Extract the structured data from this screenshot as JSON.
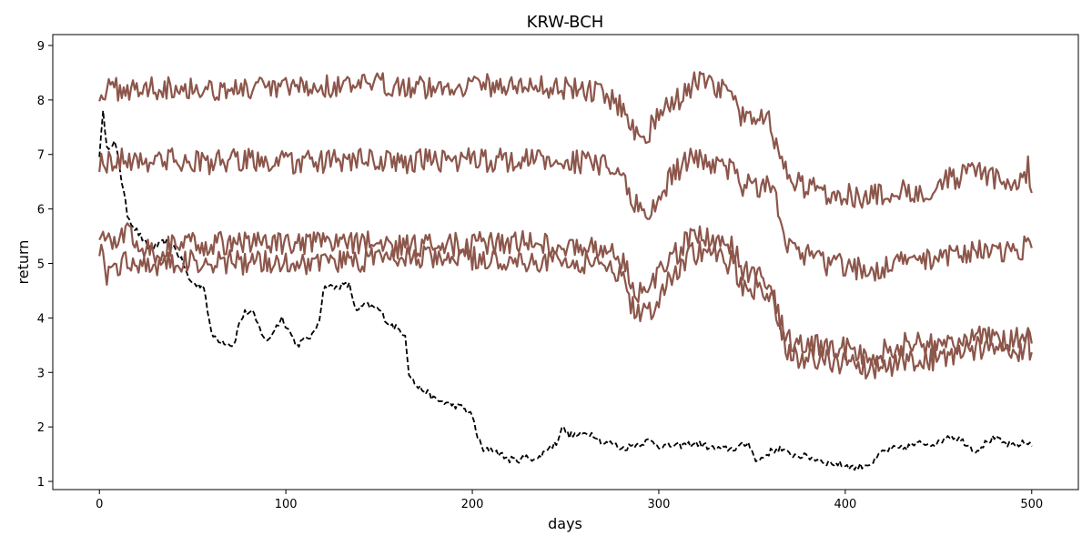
{
  "chart_data": {
    "type": "line",
    "title": "KRW-BCH",
    "xlabel": "days",
    "ylabel": "return",
    "xlim": [
      -25,
      525
    ],
    "ylim": [
      0.85,
      9.2
    ],
    "xticks": [
      0,
      100,
      200,
      300,
      400,
      500
    ],
    "yticks": [
      1,
      2,
      3,
      4,
      5,
      6,
      7,
      8,
      9
    ],
    "grid": false,
    "legend": "none",
    "colors": {
      "brown": "#8c564b",
      "black": "#000000"
    },
    "series": [
      {
        "style": "dashed",
        "color": "#000000",
        "x": [
          0,
          2,
          4,
          6,
          8,
          10,
          12,
          15,
          18,
          22,
          26,
          30,
          35,
          40,
          45,
          48,
          52,
          56,
          60,
          64,
          68,
          72,
          75,
          78,
          82,
          86,
          90,
          94,
          98,
          102,
          106,
          110,
          115,
          118,
          120,
          122,
          126,
          130,
          134,
          138,
          142,
          146,
          150,
          155,
          160,
          164,
          166,
          170,
          175,
          180,
          185,
          190,
          195,
          200,
          203,
          206,
          210,
          215,
          220,
          225,
          230,
          235,
          240,
          245,
          248,
          252,
          258,
          262,
          266,
          270,
          275,
          280,
          285,
          290,
          295,
          300,
          310,
          320,
          330,
          340,
          348,
          350,
          352,
          356,
          360,
          365,
          370,
          380,
          390,
          400,
          405,
          410,
          415,
          420,
          425,
          430,
          440,
          450,
          455,
          460,
          465,
          470,
          475,
          480,
          485,
          490,
          495,
          500
        ],
        "values": [
          7.0,
          7.75,
          7.2,
          7.1,
          7.2,
          7.0,
          6.5,
          5.9,
          5.7,
          5.5,
          5.3,
          5.3,
          5.4,
          5.3,
          5.0,
          4.7,
          4.6,
          4.6,
          3.7,
          3.6,
          3.55,
          3.5,
          3.9,
          4.1,
          4.1,
          3.8,
          3.55,
          3.8,
          4.0,
          3.75,
          3.5,
          3.6,
          3.7,
          4.0,
          4.5,
          4.6,
          4.55,
          4.6,
          4.6,
          4.1,
          4.25,
          4.2,
          4.15,
          3.9,
          3.8,
          3.7,
          3.0,
          2.75,
          2.65,
          2.5,
          2.45,
          2.4,
          2.35,
          2.2,
          1.8,
          1.55,
          1.6,
          1.5,
          1.4,
          1.4,
          1.45,
          1.4,
          1.6,
          1.7,
          2.0,
          1.85,
          1.85,
          1.9,
          1.85,
          1.7,
          1.7,
          1.6,
          1.65,
          1.7,
          1.75,
          1.65,
          1.65,
          1.7,
          1.6,
          1.6,
          1.7,
          1.6,
          1.35,
          1.45,
          1.55,
          1.6,
          1.5,
          1.45,
          1.35,
          1.3,
          1.25,
          1.3,
          1.35,
          1.55,
          1.6,
          1.6,
          1.7,
          1.7,
          1.85,
          1.8,
          1.7,
          1.55,
          1.7,
          1.8,
          1.7,
          1.65,
          1.7,
          1.7
        ]
      },
      {
        "style": "solid",
        "color": "#8c564b",
        "x": [
          0,
          10,
          20,
          40,
          60,
          80,
          100,
          120,
          140,
          160,
          180,
          200,
          220,
          240,
          260,
          270,
          280,
          285,
          290,
          295,
          300,
          305,
          310,
          315,
          320,
          325,
          330,
          335,
          340,
          345,
          350,
          355,
          360,
          365,
          370,
          380,
          390,
          400,
          410,
          420,
          430,
          440,
          450,
          460,
          470,
          480,
          490,
          496,
          498,
          500
        ],
        "values": [
          8.15,
          8.2,
          8.2,
          8.25,
          8.2,
          8.2,
          8.2,
          8.25,
          8.25,
          8.3,
          8.2,
          8.3,
          8.25,
          8.25,
          8.2,
          8.1,
          7.9,
          7.5,
          7.4,
          7.45,
          7.7,
          7.9,
          8.0,
          8.2,
          8.35,
          8.3,
          8.2,
          8.2,
          8.0,
          7.65,
          7.6,
          7.8,
          7.6,
          6.9,
          6.5,
          6.4,
          6.3,
          6.3,
          6.2,
          6.25,
          6.35,
          6.3,
          6.45,
          6.6,
          6.65,
          6.55,
          6.5,
          6.6,
          6.75,
          6.3
        ]
      },
      {
        "style": "solid",
        "color": "#8c564b",
        "x": [
          0,
          10,
          20,
          40,
          60,
          80,
          100,
          120,
          140,
          160,
          180,
          200,
          220,
          240,
          260,
          270,
          280,
          285,
          290,
          295,
          300,
          305,
          310,
          315,
          320,
          325,
          330,
          335,
          340,
          345,
          350,
          355,
          360,
          365,
          370,
          380,
          390,
          400,
          410,
          420,
          430,
          440,
          450,
          460,
          470,
          480,
          490,
          496,
          498,
          500
        ],
        "values": [
          6.85,
          6.9,
          6.9,
          6.9,
          6.85,
          6.9,
          6.85,
          6.85,
          6.9,
          6.85,
          6.9,
          6.9,
          6.9,
          6.9,
          6.85,
          6.8,
          6.6,
          6.2,
          6.05,
          5.9,
          6.2,
          6.5,
          6.7,
          6.9,
          6.9,
          6.9,
          6.8,
          6.75,
          6.7,
          6.45,
          6.4,
          6.45,
          6.4,
          5.9,
          5.3,
          5.15,
          5.0,
          4.95,
          4.9,
          4.9,
          5.0,
          5.05,
          5.15,
          5.2,
          5.25,
          5.15,
          5.2,
          5.3,
          5.4,
          5.1
        ]
      },
      {
        "style": "solid",
        "color": "#8c564b",
        "x": [
          0,
          4,
          8,
          12,
          16,
          20,
          30,
          40,
          60,
          80,
          100,
          120,
          140,
          160,
          180,
          200,
          220,
          240,
          260,
          270,
          280,
          285,
          290,
          295,
          300,
          305,
          310,
          315,
          320,
          325,
          330,
          335,
          340,
          345,
          350,
          355,
          360,
          365,
          370,
          380,
          390,
          400,
          410,
          420,
          430,
          440,
          450,
          460,
          470,
          480,
          490,
          496,
          498,
          500
        ],
        "values": [
          5.6,
          5.45,
          5.3,
          5.5,
          5.7,
          5.4,
          5.2,
          5.35,
          5.35,
          5.4,
          5.35,
          5.35,
          5.4,
          5.3,
          5.35,
          5.35,
          5.4,
          5.35,
          5.3,
          5.25,
          5.1,
          4.7,
          4.45,
          4.5,
          4.8,
          5.05,
          5.2,
          5.4,
          5.5,
          5.5,
          5.45,
          5.35,
          5.3,
          4.9,
          4.75,
          4.8,
          4.6,
          4.0,
          3.6,
          3.55,
          3.4,
          3.45,
          3.3,
          3.4,
          3.5,
          3.55,
          3.45,
          3.6,
          3.7,
          3.6,
          3.55,
          3.7,
          3.9,
          3.6
        ]
      },
      {
        "style": "solid",
        "color": "#8c564b",
        "x": [
          0,
          4,
          8,
          12,
          16,
          20,
          30,
          40,
          60,
          80,
          100,
          120,
          140,
          160,
          180,
          200,
          220,
          240,
          260,
          270,
          280,
          285,
          290,
          295,
          300,
          305,
          310,
          315,
          320,
          325,
          330,
          335,
          340,
          345,
          350,
          355,
          360,
          365,
          370,
          380,
          390,
          400,
          410,
          420,
          430,
          440,
          450,
          460,
          470,
          480,
          490,
          496,
          498,
          500
        ],
        "values": [
          5.3,
          4.8,
          4.95,
          5.0,
          5.05,
          5.0,
          5.0,
          5.0,
          5.05,
          5.0,
          5.05,
          5.0,
          5.05,
          5.1,
          5.1,
          5.1,
          5.05,
          5.05,
          5.0,
          5.0,
          4.75,
          4.3,
          4.05,
          4.1,
          4.4,
          4.7,
          4.9,
          5.1,
          5.2,
          5.25,
          5.15,
          5.05,
          5.0,
          4.6,
          4.55,
          4.6,
          4.4,
          3.8,
          3.3,
          3.25,
          3.2,
          3.2,
          3.1,
          3.1,
          3.2,
          3.2,
          3.25,
          3.35,
          3.45,
          3.35,
          3.3,
          3.45,
          3.6,
          3.25
        ]
      }
    ]
  }
}
